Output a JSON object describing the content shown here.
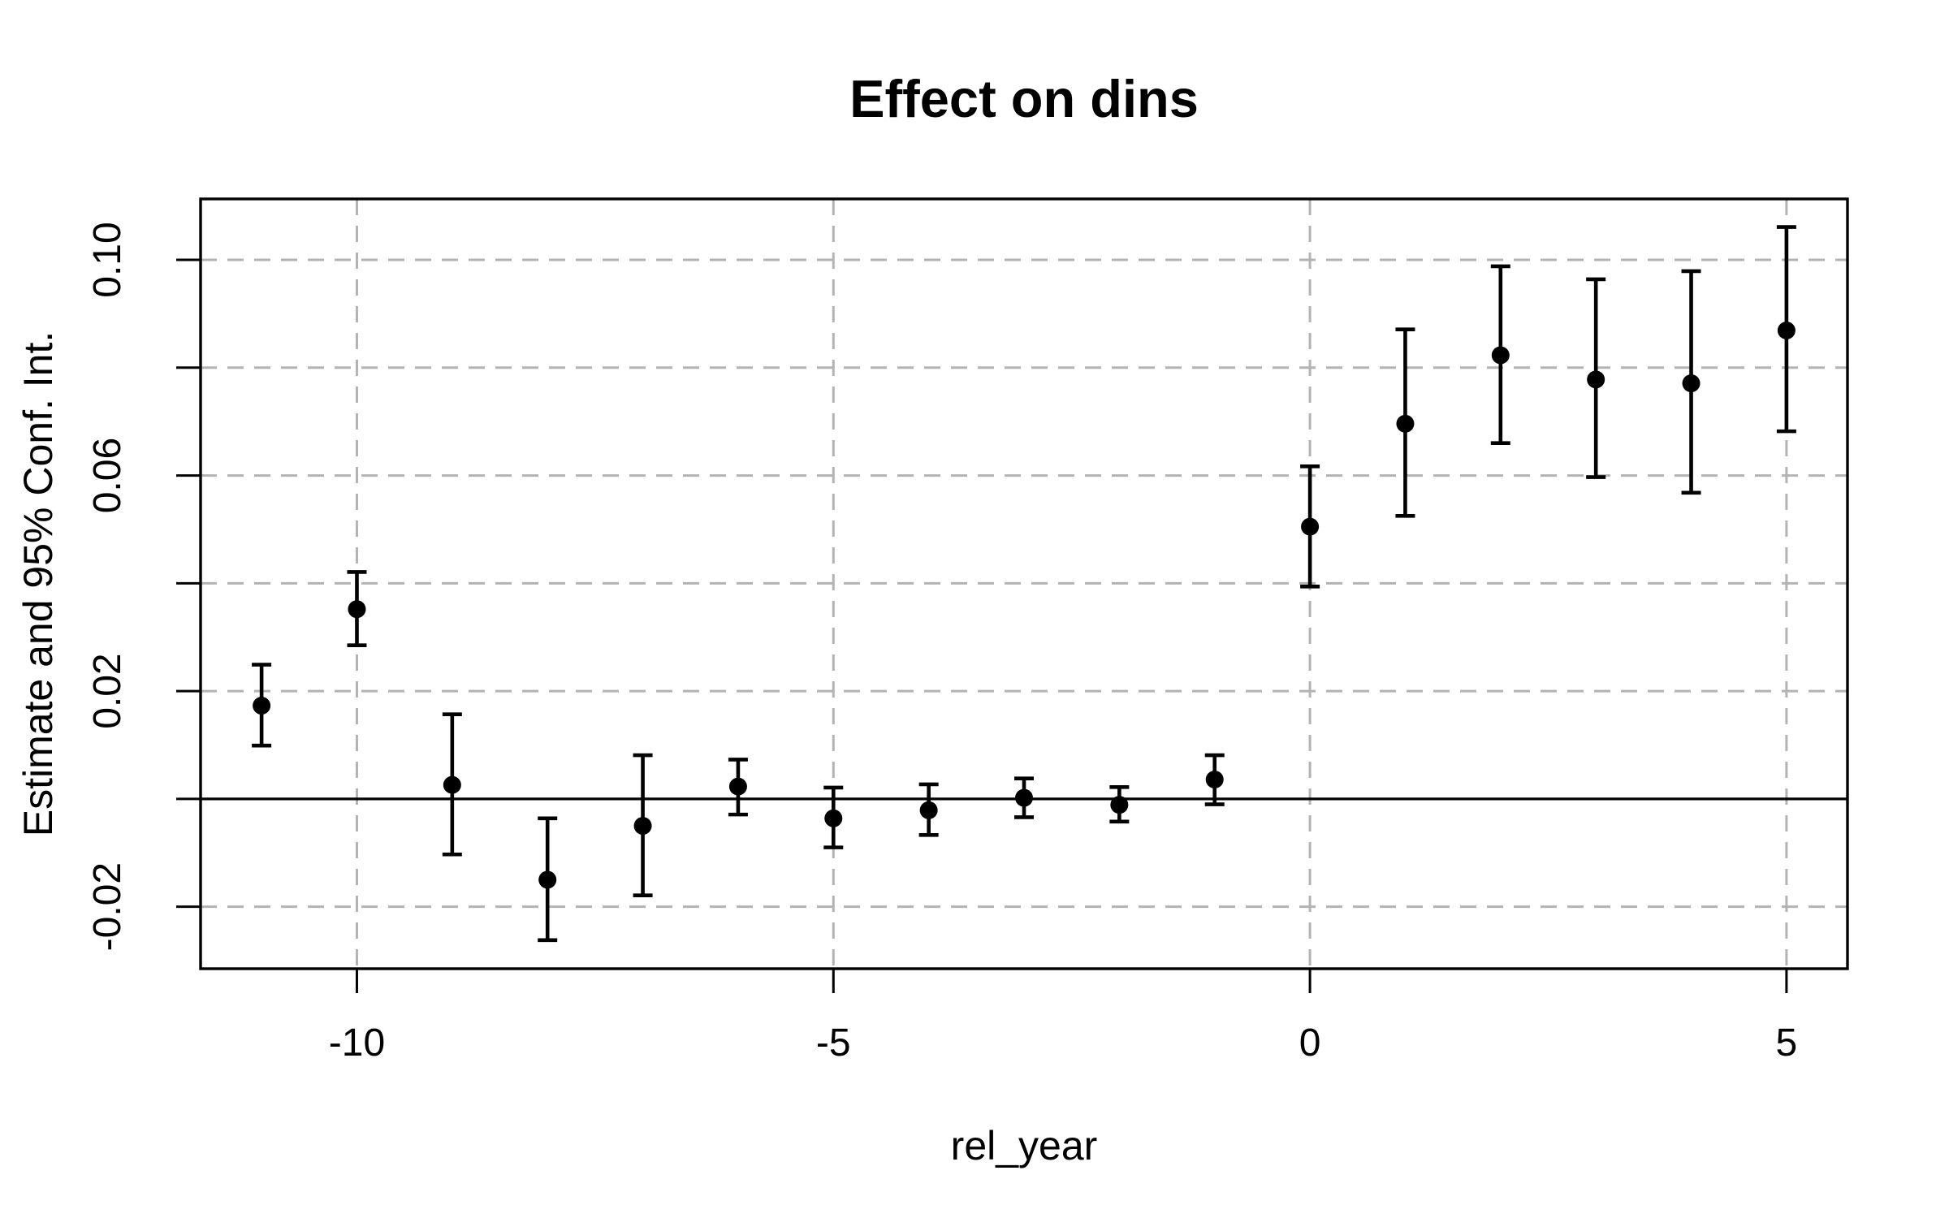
{
  "chart_data": {
    "type": "scatter",
    "subtype": "point-estimates-with-95ci-errorbars",
    "title": "Effect on dins",
    "xlabel": "rel_year",
    "ylabel": "Estimate and 95% Conf. Int.",
    "xlim": [
      -11.64,
      5.64
    ],
    "ylim": [
      -0.0315,
      0.1113
    ],
    "x_ticks": {
      "values": [
        -10,
        -5,
        0,
        5
      ],
      "labels": [
        "-10",
        "-5",
        "0",
        "5"
      ]
    },
    "y_ticks": {
      "values": [
        0.1,
        0.08,
        0.06,
        0.04,
        0.02,
        0.0,
        -0.02
      ],
      "labels": [
        "0.10",
        "",
        "0.06",
        "",
        "0.02",
        "",
        "-0.02"
      ]
    },
    "grid": {
      "style": "dashed",
      "color": "#b3b3b3",
      "x_values": [
        -10,
        -5,
        0,
        5
      ],
      "y_values": [
        0.1,
        0.08,
        0.06,
        0.04,
        0.02,
        -0.02
      ]
    },
    "zero_line": {
      "y": 0,
      "style": "solid",
      "color": "#000000"
    },
    "points": [
      {
        "x": -11,
        "estimate": 0.0173,
        "ci_low": 0.0099,
        "ci_high": 0.0249
      },
      {
        "x": -10,
        "estimate": 0.0352,
        "ci_low": 0.0285,
        "ci_high": 0.0421
      },
      {
        "x": -9,
        "estimate": 0.0026,
        "ci_low": -0.0103,
        "ci_high": 0.0157
      },
      {
        "x": -8,
        "estimate": -0.015,
        "ci_low": -0.0262,
        "ci_high": -0.0036
      },
      {
        "x": -7,
        "estimate": -0.005,
        "ci_low": -0.0179,
        "ci_high": 0.0081
      },
      {
        "x": -6,
        "estimate": 0.0023,
        "ci_low": -0.0029,
        "ci_high": 0.0073
      },
      {
        "x": -5,
        "estimate": -0.0036,
        "ci_low": -0.009,
        "ci_high": 0.0021
      },
      {
        "x": -4,
        "estimate": -0.0021,
        "ci_low": -0.0067,
        "ci_high": 0.0027
      },
      {
        "x": -3,
        "estimate": 0.0002,
        "ci_low": -0.0034,
        "ci_high": 0.0038
      },
      {
        "x": -2,
        "estimate": -0.0011,
        "ci_low": -0.0042,
        "ci_high": 0.0022
      },
      {
        "x": -1,
        "estimate": 0.0036,
        "ci_low": -0.001,
        "ci_high": 0.0081
      },
      {
        "x": 0,
        "estimate": 0.0505,
        "ci_low": 0.0394,
        "ci_high": 0.0617
      },
      {
        "x": 1,
        "estimate": 0.0696,
        "ci_low": 0.0525,
        "ci_high": 0.0871
      },
      {
        "x": 2,
        "estimate": 0.0823,
        "ci_low": 0.066,
        "ci_high": 0.0988
      },
      {
        "x": 3,
        "estimate": 0.0778,
        "ci_low": 0.0597,
        "ci_high": 0.0964
      },
      {
        "x": 4,
        "estimate": 0.0771,
        "ci_low": 0.0568,
        "ci_high": 0.0979
      },
      {
        "x": 5,
        "estimate": 0.0869,
        "ci_low": 0.0682,
        "ci_high": 0.1061
      }
    ],
    "colors": {
      "point": "#000000",
      "error_bar": "#000000",
      "frame": "#000000",
      "tick": "#000000",
      "background": "#ffffff"
    }
  }
}
